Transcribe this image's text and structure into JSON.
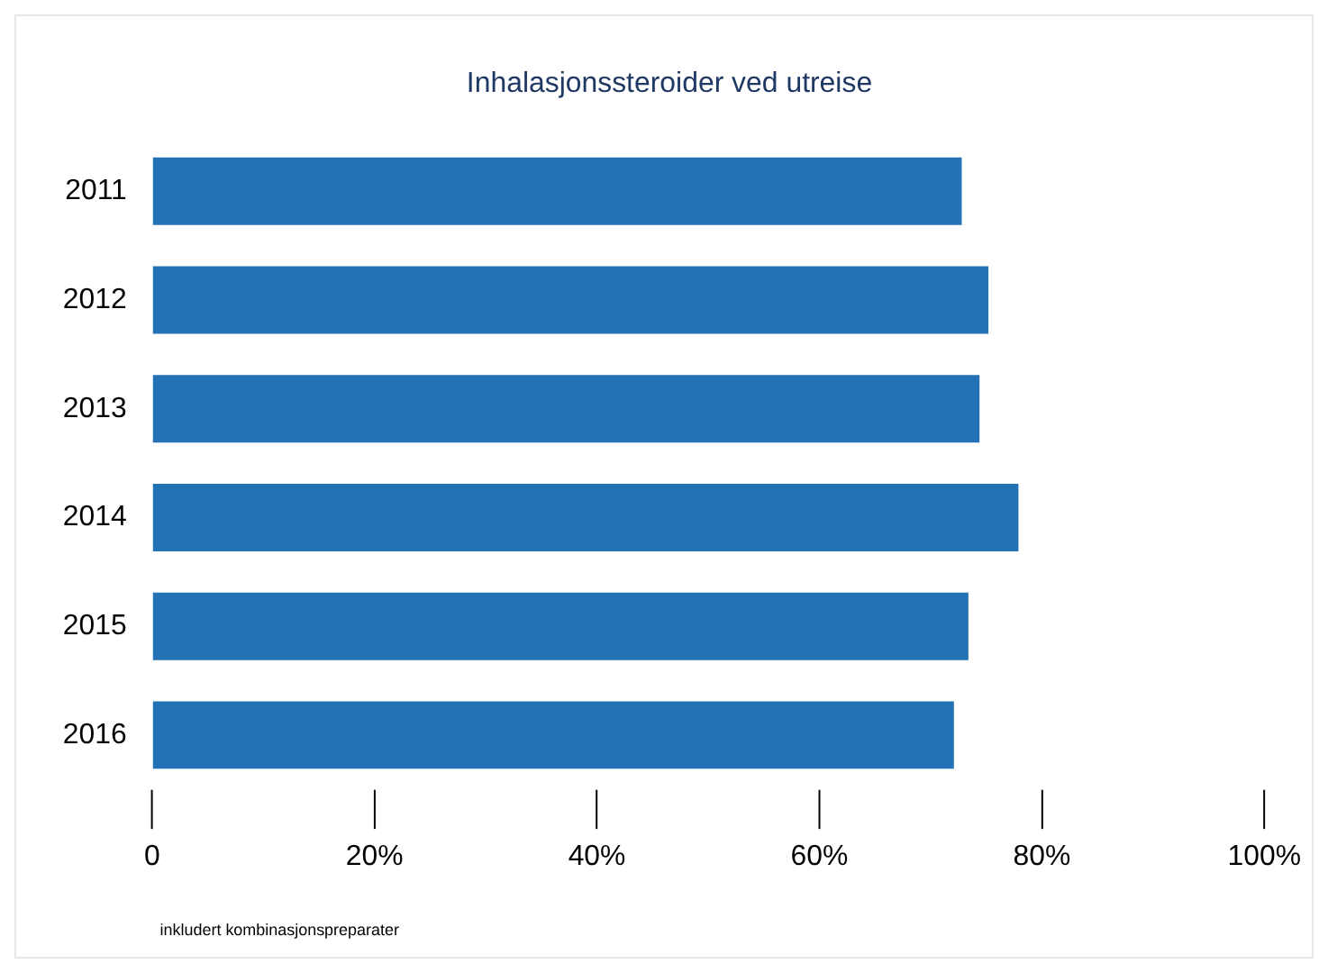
{
  "chart_data": {
    "type": "bar",
    "orientation": "horizontal",
    "title": "Inhalasjonssteroider ved utreise",
    "categories": [
      "2011",
      "2012",
      "2013",
      "2014",
      "2015",
      "2016"
    ],
    "values": [
      72.8,
      75.2,
      74.4,
      77.9,
      73.4,
      72.1
    ],
    "color": "#2272b5",
    "xlim": [
      0,
      100
    ],
    "xticks": [
      0,
      {
        "value": 20,
        "label": "20%"
      },
      {
        "value": 40,
        "label": "40%"
      },
      {
        "value": 60,
        "label": "60%"
      },
      {
        "value": 80,
        "label": "80%"
      },
      {
        "value": 100,
        "label": "100%"
      }
    ],
    "grid": false,
    "legend": false,
    "annotations": [
      "inkludert kombinasjonspreparater"
    ]
  }
}
